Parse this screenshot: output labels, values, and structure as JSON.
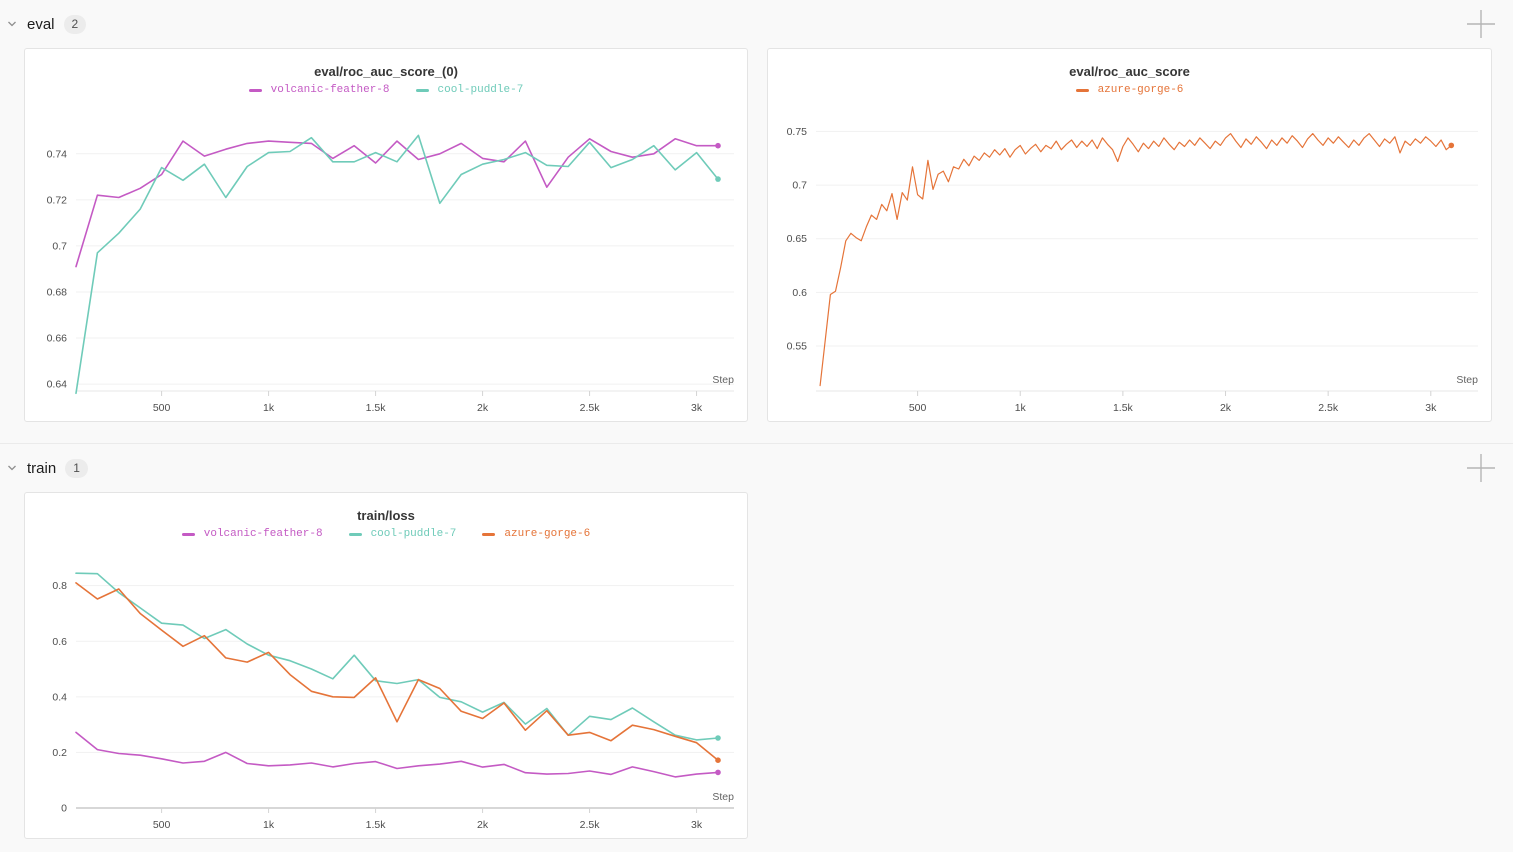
{
  "sections": [
    {
      "id": "eval",
      "label": "eval",
      "count": "2"
    },
    {
      "id": "train",
      "label": "train",
      "count": "1"
    }
  ],
  "icons": {
    "chevron": "chevron-down",
    "plus": "add-panel"
  },
  "colors": {
    "volcanic-feather-8": "#C45AC4",
    "cool-puddle-7": "#6FCBB9",
    "azure-gorge-6": "#E57439",
    "grid": "#f1f1f1",
    "axis": "#e7e7e7",
    "tick_text": "#4e4e4e",
    "panel_border": "#e4e4e4",
    "page_background": "#f9f9f9"
  },
  "chart_data": [
    {
      "type": "line",
      "title": "eval/roc_auc_score_(0)",
      "xlabel": "Step",
      "xlim": [
        100,
        3175
      ],
      "ylim": [
        0.637,
        0.7525
      ],
      "yticks": [
        0.64,
        0.66,
        0.68,
        0.7,
        0.72,
        0.74
      ],
      "xticks": [
        {
          "v": 500,
          "label": "500"
        },
        {
          "v": 1000,
          "label": "1k"
        },
        {
          "v": 1500,
          "label": "1.5k"
        },
        {
          "v": 2000,
          "label": "2k"
        },
        {
          "v": 2500,
          "label": "2.5k"
        },
        {
          "v": 3000,
          "label": "3k"
        }
      ],
      "x_start": 100,
      "x_interval": 100,
      "series": [
        {
          "name": "volcanic-feather-8",
          "color": "#C45AC4",
          "values": [
            0.691,
            0.722,
            0.721,
            0.725,
            0.731,
            0.7455,
            0.739,
            0.742,
            0.7445,
            0.7455,
            0.745,
            0.7445,
            0.738,
            0.7435,
            0.736,
            0.7455,
            0.7375,
            0.74,
            0.7445,
            0.738,
            0.7365,
            0.7455,
            0.7255,
            0.7385,
            0.7465,
            0.741,
            0.7385,
            0.74,
            0.7465,
            0.7435,
            0.7435
          ]
        },
        {
          "name": "cool-puddle-7",
          "color": "#6FCBB9",
          "values": [
            0.636,
            0.697,
            0.7055,
            0.716,
            0.734,
            0.7285,
            0.7355,
            0.721,
            0.7345,
            0.7405,
            0.741,
            0.747,
            0.7365,
            0.7365,
            0.7405,
            0.7365,
            0.748,
            0.7185,
            0.731,
            0.7355,
            0.7375,
            0.7405,
            0.735,
            0.7345,
            0.745,
            0.734,
            0.7375,
            0.7435,
            0.733,
            0.7405,
            0.729
          ]
        }
      ]
    },
    {
      "type": "line",
      "title": "eval/roc_auc_score",
      "xlabel": "Step",
      "xlim": [
        5,
        3230
      ],
      "ylim": [
        0.508,
        0.756
      ],
      "yticks": [
        0.55,
        0.6,
        0.65,
        0.7,
        0.75
      ],
      "xticks": [
        {
          "v": 500,
          "label": "500"
        },
        {
          "v": 1000,
          "label": "1k"
        },
        {
          "v": 1500,
          "label": "1.5k"
        },
        {
          "v": 2000,
          "label": "2k"
        },
        {
          "v": 2500,
          "label": "2.5k"
        },
        {
          "v": 3000,
          "label": "3k"
        }
      ],
      "x_start": 25,
      "x_interval": 25,
      "series": [
        {
          "name": "azure-gorge-6",
          "color": "#E57439",
          "values": [
            0.513,
            0.555,
            0.598,
            0.601,
            0.623,
            0.648,
            0.655,
            0.651,
            0.648,
            0.661,
            0.672,
            0.668,
            0.682,
            0.676,
            0.692,
            0.668,
            0.693,
            0.686,
            0.717,
            0.691,
            0.687,
            0.723,
            0.696,
            0.71,
            0.713,
            0.703,
            0.717,
            0.715,
            0.724,
            0.718,
            0.727,
            0.723,
            0.73,
            0.726,
            0.733,
            0.728,
            0.734,
            0.726,
            0.733,
            0.737,
            0.729,
            0.734,
            0.738,
            0.731,
            0.737,
            0.734,
            0.741,
            0.733,
            0.738,
            0.742,
            0.735,
            0.741,
            0.736,
            0.742,
            0.734,
            0.744,
            0.738,
            0.733,
            0.722,
            0.736,
            0.744,
            0.738,
            0.731,
            0.739,
            0.734,
            0.741,
            0.736,
            0.744,
            0.738,
            0.733,
            0.74,
            0.736,
            0.742,
            0.737,
            0.744,
            0.739,
            0.734,
            0.741,
            0.737,
            0.744,
            0.748,
            0.741,
            0.735,
            0.743,
            0.738,
            0.745,
            0.74,
            0.734,
            0.742,
            0.737,
            0.744,
            0.739,
            0.746,
            0.741,
            0.735,
            0.743,
            0.748,
            0.742,
            0.737,
            0.744,
            0.739,
            0.745,
            0.74,
            0.735,
            0.742,
            0.737,
            0.744,
            0.748,
            0.742,
            0.736,
            0.743,
            0.739,
            0.745,
            0.73,
            0.741,
            0.737,
            0.743,
            0.739,
            0.745,
            0.741,
            0.736,
            0.742,
            0.733,
            0.737
          ]
        }
      ]
    },
    {
      "type": "line",
      "title": "train/loss",
      "xlabel": "Step",
      "xlim": [
        100,
        3175
      ],
      "ylim": [
        0,
        0.86
      ],
      "yticks": [
        0,
        0.2,
        0.4,
        0.6,
        0.8
      ],
      "xticks": [
        {
          "v": 500,
          "label": "500"
        },
        {
          "v": 1000,
          "label": "1k"
        },
        {
          "v": 1500,
          "label": "1.5k"
        },
        {
          "v": 2000,
          "label": "2k"
        },
        {
          "v": 2500,
          "label": "2.5k"
        },
        {
          "v": 3000,
          "label": "3k"
        }
      ],
      "x_start": 100,
      "x_interval": 100,
      "series": [
        {
          "name": "volcanic-feather-8",
          "color": "#C45AC4",
          "values": [
            0.272,
            0.21,
            0.196,
            0.19,
            0.177,
            0.162,
            0.168,
            0.2,
            0.16,
            0.152,
            0.155,
            0.162,
            0.148,
            0.16,
            0.167,
            0.142,
            0.152,
            0.158,
            0.168,
            0.147,
            0.157,
            0.127,
            0.122,
            0.124,
            0.133,
            0.121,
            0.148,
            0.131,
            0.112,
            0.122,
            0.128
          ]
        },
        {
          "name": "cool-puddle-7",
          "color": "#6FCBB9",
          "values": [
            0.845,
            0.843,
            0.775,
            0.72,
            0.665,
            0.658,
            0.61,
            0.642,
            0.59,
            0.55,
            0.53,
            0.5,
            0.465,
            0.55,
            0.458,
            0.448,
            0.462,
            0.398,
            0.382,
            0.345,
            0.38,
            0.302,
            0.358,
            0.262,
            0.33,
            0.318,
            0.36,
            0.31,
            0.262,
            0.245,
            0.252
          ]
        },
        {
          "name": "azure-gorge-6",
          "color": "#E57439",
          "values": [
            0.81,
            0.752,
            0.788,
            0.7,
            0.64,
            0.582,
            0.62,
            0.54,
            0.525,
            0.56,
            0.48,
            0.42,
            0.4,
            0.398,
            0.468,
            0.31,
            0.462,
            0.43,
            0.348,
            0.322,
            0.378,
            0.28,
            0.35,
            0.262,
            0.272,
            0.242,
            0.298,
            0.282,
            0.258,
            0.235,
            0.172
          ]
        }
      ]
    }
  ]
}
